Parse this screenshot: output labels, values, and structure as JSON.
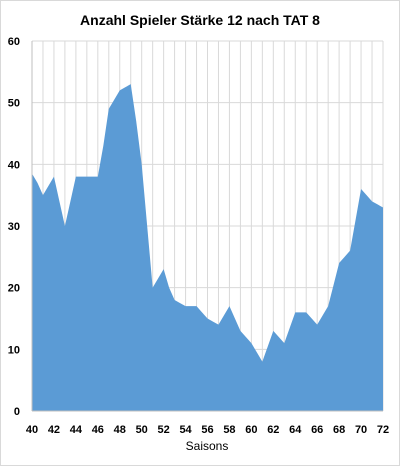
{
  "chart_data": {
    "type": "area",
    "title": "Anzahl Spieler Stärke 12 nach TAT 8",
    "xlabel": "Saisons",
    "ylabel": "",
    "xlim": [
      40,
      72
    ],
    "ylim": [
      0,
      60
    ],
    "xticks": [
      40,
      42,
      44,
      46,
      48,
      50,
      52,
      54,
      56,
      58,
      60,
      62,
      64,
      66,
      68,
      70,
      72
    ],
    "yticks": [
      0,
      10,
      20,
      30,
      40,
      50,
      60
    ],
    "grid": {
      "vertical": true,
      "horizontal": true
    },
    "legend": "none",
    "fill_color": "#5b9bd5",
    "x": [
      40,
      40.5,
      41,
      41.5,
      42,
      42.5,
      43,
      43.5,
      44,
      44.5,
      45,
      45.5,
      46,
      46.5,
      47,
      47.5,
      48,
      48.5,
      49,
      49.5,
      50,
      50.5,
      51,
      51.5,
      52,
      52.5,
      53,
      53.5,
      54,
      54.5,
      55,
      55.5,
      56,
      56.5,
      57,
      57.5,
      58,
      58.5,
      59,
      59.5,
      60,
      60.5,
      61,
      61.5,
      62,
      62.5,
      63,
      63.5,
      64,
      64.5,
      65,
      65.5,
      66,
      66.5,
      67,
      67.5,
      68,
      68.5,
      69,
      69.5,
      70,
      70.5,
      71,
      71.5,
      72
    ],
    "y": [
      38.5,
      37,
      35,
      36.5,
      38,
      34,
      30,
      34,
      38,
      38,
      38,
      38,
      38,
      43,
      49,
      50.5,
      52,
      52.5,
      53,
      47,
      40,
      30,
      20,
      21.5,
      23,
      20,
      18,
      17.5,
      17,
      17,
      17,
      16,
      15,
      14.5,
      14,
      15.5,
      17,
      15,
      13,
      12,
      11,
      9.5,
      8,
      10.5,
      13,
      12,
      11,
      13.5,
      16,
      16,
      16,
      15,
      14,
      15.5,
      17,
      20.5,
      24,
      25,
      26,
      31,
      36,
      35,
      34,
      33.5,
      33
    ]
  }
}
